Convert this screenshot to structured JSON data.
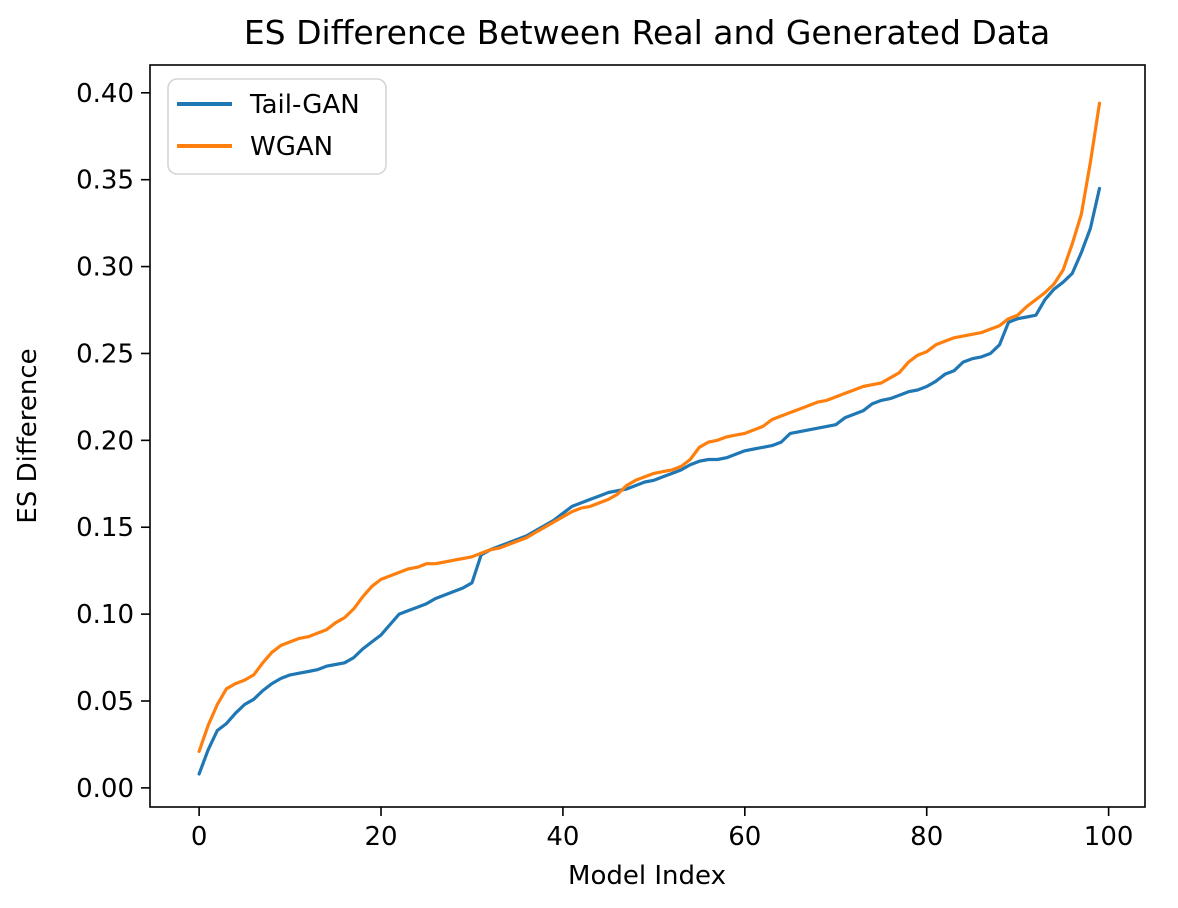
{
  "chart_data": {
    "type": "line",
    "title": "ES Difference Between Real and Generated Data",
    "xlabel": "Model Index",
    "ylabel": "ES Difference",
    "xlim": [
      -5.4,
      104.0
    ],
    "ylim": [
      -0.011,
      0.416
    ],
    "xticks": [
      0,
      20,
      40,
      60,
      80,
      100
    ],
    "xtick_labels": [
      "0",
      "20",
      "40",
      "60",
      "80",
      "100"
    ],
    "yticks": [
      0.0,
      0.05,
      0.1,
      0.15,
      0.2,
      0.25,
      0.3,
      0.35,
      0.4
    ],
    "ytick_labels": [
      "0.00",
      "0.05",
      "0.10",
      "0.15",
      "0.20",
      "0.25",
      "0.30",
      "0.35",
      "0.40"
    ],
    "grid": false,
    "legend_position": "upper-left",
    "x_range": [
      0,
      99
    ],
    "series": [
      {
        "name": "Tail-GAN",
        "color": "#1f77b4",
        "values": [
          0.008,
          0.022,
          0.033,
          0.037,
          0.043,
          0.048,
          0.051,
          0.056,
          0.06,
          0.063,
          0.065,
          0.066,
          0.067,
          0.068,
          0.07,
          0.071,
          0.072,
          0.075,
          0.08,
          0.084,
          0.088,
          0.094,
          0.1,
          0.102,
          0.104,
          0.106,
          0.109,
          0.111,
          0.113,
          0.115,
          0.118,
          0.134,
          0.137,
          0.139,
          0.141,
          0.143,
          0.145,
          0.148,
          0.151,
          0.154,
          0.158,
          0.162,
          0.164,
          0.166,
          0.168,
          0.17,
          0.171,
          0.172,
          0.174,
          0.176,
          0.177,
          0.179,
          0.181,
          0.183,
          0.186,
          0.188,
          0.189,
          0.189,
          0.19,
          0.192,
          0.194,
          0.195,
          0.196,
          0.197,
          0.199,
          0.204,
          0.205,
          0.206,
          0.207,
          0.208,
          0.209,
          0.213,
          0.215,
          0.217,
          0.221,
          0.223,
          0.224,
          0.226,
          0.228,
          0.229,
          0.231,
          0.234,
          0.238,
          0.24,
          0.245,
          0.247,
          0.248,
          0.25,
          0.255,
          0.268,
          0.27,
          0.271,
          0.272,
          0.281,
          0.287,
          0.291,
          0.296,
          0.308,
          0.322,
          0.345
        ]
      },
      {
        "name": "WGAN",
        "color": "#ff7f0e",
        "values": [
          0.021,
          0.036,
          0.048,
          0.057,
          0.06,
          0.062,
          0.065,
          0.072,
          0.078,
          0.082,
          0.084,
          0.086,
          0.087,
          0.089,
          0.091,
          0.095,
          0.098,
          0.103,
          0.11,
          0.116,
          0.12,
          0.122,
          0.124,
          0.126,
          0.127,
          0.129,
          0.129,
          0.13,
          0.131,
          0.132,
          0.133,
          0.135,
          0.137,
          0.138,
          0.14,
          0.142,
          0.144,
          0.147,
          0.15,
          0.153,
          0.156,
          0.159,
          0.161,
          0.162,
          0.164,
          0.166,
          0.169,
          0.174,
          0.177,
          0.179,
          0.181,
          0.182,
          0.183,
          0.185,
          0.189,
          0.196,
          0.199,
          0.2,
          0.202,
          0.203,
          0.204,
          0.206,
          0.208,
          0.212,
          0.214,
          0.216,
          0.218,
          0.22,
          0.222,
          0.223,
          0.225,
          0.227,
          0.229,
          0.231,
          0.232,
          0.233,
          0.236,
          0.239,
          0.245,
          0.249,
          0.251,
          0.255,
          0.257,
          0.259,
          0.26,
          0.261,
          0.262,
          0.264,
          0.266,
          0.27,
          0.272,
          0.277,
          0.281,
          0.285,
          0.29,
          0.298,
          0.313,
          0.33,
          0.36,
          0.394
        ]
      }
    ],
    "colors": {
      "background": "#ffffff",
      "spine": "#000000",
      "text": "#000000",
      "legend_border": "#d5d5d5"
    }
  }
}
